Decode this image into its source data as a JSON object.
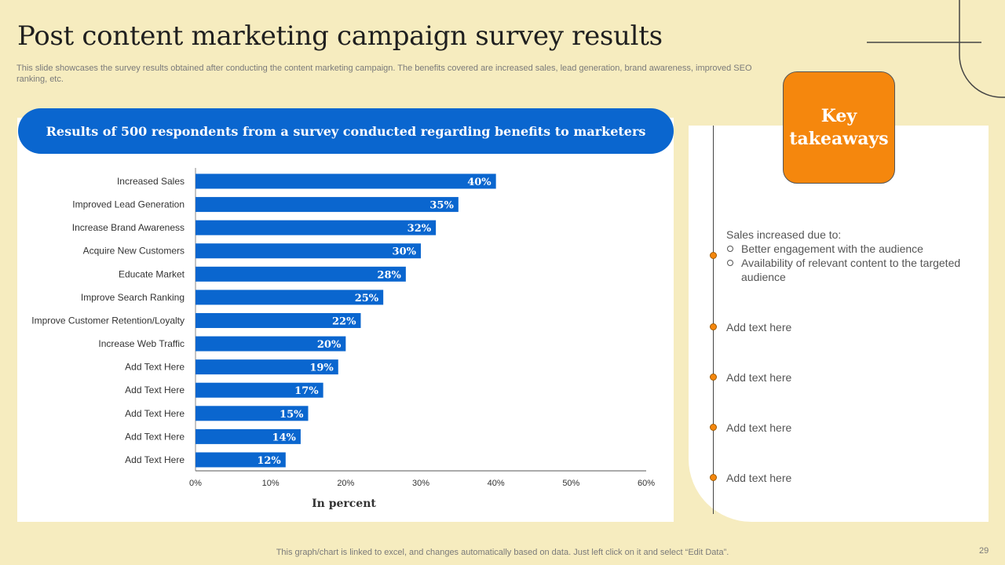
{
  "slide": {
    "title": "Post content marketing campaign survey results",
    "subtitle": "This slide showcases the survey results obtained after conducting the content marketing campaign. The benefits covered are increased sales, lead generation, brand awareness, improved SEO ranking, etc.",
    "footer": "This graph/chart is linked to excel,  and changes automatically based on data. Just left click on it and select “Edit Data”.",
    "page_number": "29"
  },
  "chart_header": "Results of 500 respondents from a survey conducted regarding benefits to marketers",
  "chart_data": {
    "type": "bar",
    "orientation": "horizontal",
    "title": "Results of 500 respondents from a survey conducted regarding benefits to marketers",
    "xlabel": "In percent",
    "ylabel": "",
    "xlim": [
      0,
      60
    ],
    "ticks": [
      "0%",
      "10%",
      "20%",
      "30%",
      "40%",
      "50%",
      "60%"
    ],
    "tick_values": [
      0,
      10,
      20,
      30,
      40,
      50,
      60
    ],
    "categories": [
      "Increased Sales",
      "Improved Lead Generation",
      "Increase Brand Awareness",
      "Acquire New Customers",
      "Educate Market",
      "Improve Search Ranking",
      "Improve Customer Retention/Loyalty",
      "Increase Web Traffic",
      "Add Text Here",
      "Add Text Here",
      "Add Text Here",
      "Add Text Here",
      "Add Text Here"
    ],
    "values": [
      40,
      35,
      32,
      30,
      28,
      25,
      22,
      20,
      19,
      17,
      15,
      14,
      12
    ],
    "data_labels": [
      "40%",
      "35%",
      "32%",
      "30%",
      "28%",
      "25%",
      "22%",
      "20%",
      "19%",
      "17%",
      "15%",
      "14%",
      "12%"
    ],
    "bar_color": "#0a66cf",
    "grid": false
  },
  "takeaways": {
    "heading_line1": "Key",
    "heading_line2": "takeaways",
    "first_intro": "Sales increased due to:",
    "first_bullets": [
      "Better engagement with the audience",
      "Availability  of relevant content to the targeted audience"
    ],
    "items": [
      "Add text here",
      "Add text here",
      "Add text here",
      "Add text here"
    ]
  },
  "colors": {
    "background": "#f6ecbf",
    "accent_blue": "#0a66cf",
    "accent_orange": "#f5870d"
  }
}
